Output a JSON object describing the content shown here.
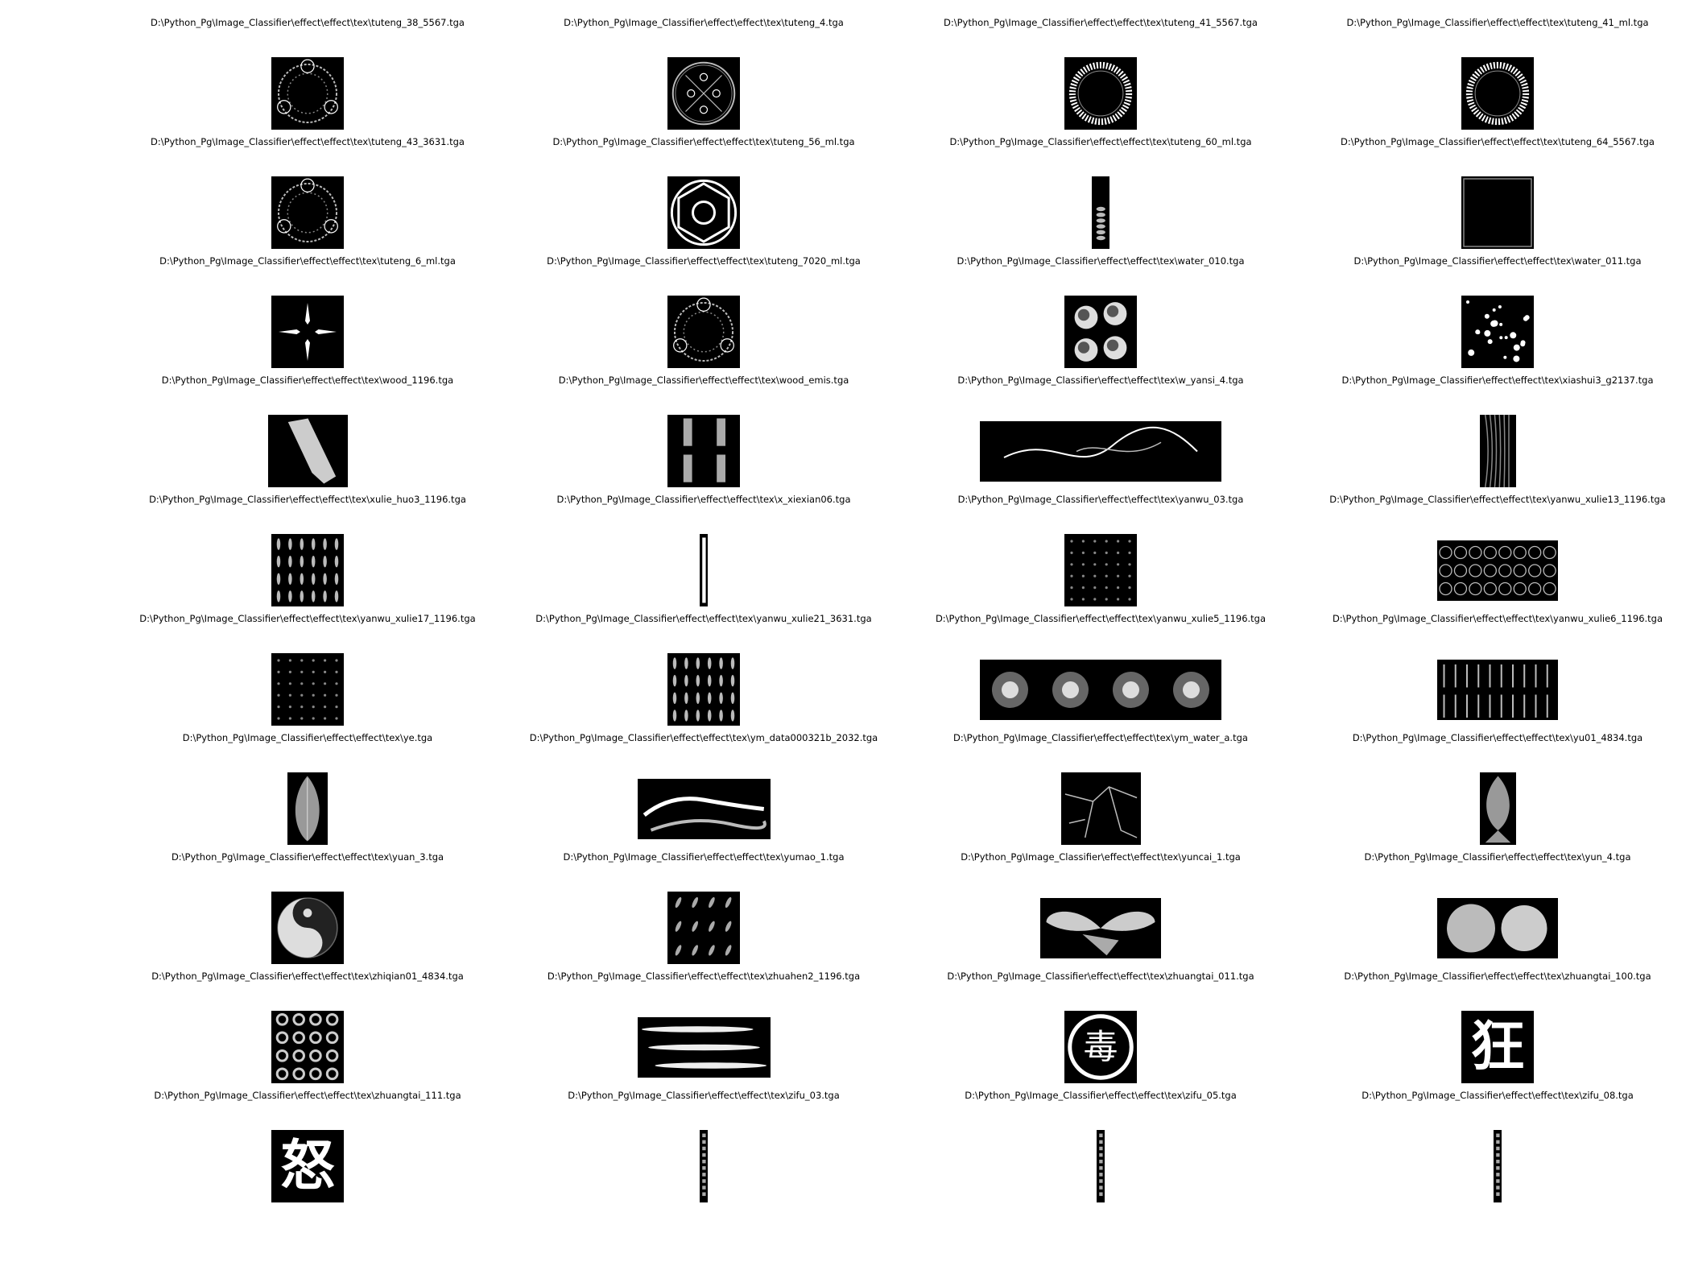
{
  "figure": {
    "images": [
      {
        "title": "D:\\Python_Pg\\Image_Classifier\\effect\\effect\\tex\\tuteng_38_5567.tga",
        "pattern": "ring-ornate",
        "aspect": 1
      },
      {
        "title": "D:\\Python_Pg\\Image_Classifier\\effect\\effect\\tex\\tuteng_4.tga",
        "pattern": "circle-symbol",
        "aspect": 1
      },
      {
        "title": "D:\\Python_Pg\\Image_Classifier\\effect\\effect\\tex\\tuteng_41_5567.tga",
        "pattern": "ring-runes",
        "aspect": 1
      },
      {
        "title": "D:\\Python_Pg\\Image_Classifier\\effect\\effect\\tex\\tuteng_41_ml.tga",
        "pattern": "ring-runes",
        "aspect": 1
      },
      {
        "title": "D:\\Python_Pg\\Image_Classifier\\effect\\effect\\tex\\tuteng_43_3631.tga",
        "pattern": "ring-ornate",
        "aspect": 1
      },
      {
        "title": "D:\\Python_Pg\\Image_Classifier\\effect\\effect\\tex\\tuteng_56_ml.tga",
        "pattern": "star-circle",
        "aspect": 1
      },
      {
        "title": "D:\\Python_Pg\\Image_Classifier\\effect\\effect\\tex\\tuteng_60_ml.tga",
        "pattern": "vertical-strip",
        "aspect": 0.25
      },
      {
        "title": "D:\\Python_Pg\\Image_Classifier\\effect\\effect\\tex\\tuteng_64_5567.tga",
        "pattern": "frame",
        "aspect": 1
      },
      {
        "title": "D:\\Python_Pg\\Image_Classifier\\effect\\effect\\tex\\tuteng_6_ml.tga",
        "pattern": "four-points",
        "aspect": 1
      },
      {
        "title": "D:\\Python_Pg\\Image_Classifier\\effect\\effect\\tex\\tuteng_7020_ml.tga",
        "pattern": "ring-ornate",
        "aspect": 1
      },
      {
        "title": "D:\\Python_Pg\\Image_Classifier\\effect\\effect\\tex\\water_010.tga",
        "pattern": "four-orbs",
        "aspect": 1
      },
      {
        "title": "D:\\Python_Pg\\Image_Classifier\\effect\\effect\\tex\\water_011.tga",
        "pattern": "scatter",
        "aspect": 1
      },
      {
        "title": "D:\\Python_Pg\\Image_Classifier\\effect\\effect\\tex\\wood_1196.tga",
        "pattern": "wood",
        "aspect": 1.1
      },
      {
        "title": "D:\\Python_Pg\\Image_Classifier\\effect\\effect\\tex\\wood_emis.tga",
        "pattern": "two-bars",
        "aspect": 1
      },
      {
        "title": "D:\\Python_Pg\\Image_Classifier\\effect\\effect\\tex\\w_yansi_4.tga",
        "pattern": "smoke",
        "aspect": 4
      },
      {
        "title": "D:\\Python_Pg\\Image_Classifier\\effect\\effect\\tex\\xiashui3_g2137.tga",
        "pattern": "streaks",
        "aspect": 0.5
      },
      {
        "title": "D:\\Python_Pg\\Image_Classifier\\effect\\effect\\tex\\xulie_huo3_1196.tga",
        "pattern": "flame-grid",
        "aspect": 1
      },
      {
        "title": "D:\\Python_Pg\\Image_Classifier\\effect\\effect\\tex\\x_xiexian06.tga",
        "pattern": "thin-strip",
        "aspect": 0.12
      },
      {
        "title": "D:\\Python_Pg\\Image_Classifier\\effect\\effect\\tex\\yanwu_03.tga",
        "pattern": "dot-grid",
        "aspect": 1
      },
      {
        "title": "D:\\Python_Pg\\Image_Classifier\\effect\\effect\\tex\\yanwu_xulie13_1196.tga",
        "pattern": "crescent-grid",
        "aspect": 2
      },
      {
        "title": "D:\\Python_Pg\\Image_Classifier\\effect\\effect\\tex\\yanwu_xulie17_1196.tga",
        "pattern": "dot-grid",
        "aspect": 1
      },
      {
        "title": "D:\\Python_Pg\\Image_Classifier\\effect\\effect\\tex\\yanwu_xulie21_3631.tga",
        "pattern": "flame-grid",
        "aspect": 1
      },
      {
        "title": "D:\\Python_Pg\\Image_Classifier\\effect\\effect\\tex\\yanwu_xulie5_1196.tga",
        "pattern": "four-bursts",
        "aspect": 4
      },
      {
        "title": "D:\\Python_Pg\\Image_Classifier\\effect\\effect\\tex\\yanwu_xulie6_1196.tga",
        "pattern": "vertical-wisps",
        "aspect": 2
      },
      {
        "title": "D:\\Python_Pg\\Image_Classifier\\effect\\effect\\tex\\ye.tga",
        "pattern": "leaf",
        "aspect": 0.55
      },
      {
        "title": "D:\\Python_Pg\\Image_Classifier\\effect\\effect\\tex\\ym_data000321b_2032.tga",
        "pattern": "clouds",
        "aspect": 2.2
      },
      {
        "title": "D:\\Python_Pg\\Image_Classifier\\effect\\effect\\tex\\ym_water_a.tga",
        "pattern": "cracks",
        "aspect": 1.1
      },
      {
        "title": "D:\\Python_Pg\\Image_Classifier\\effect\\effect\\tex\\yu01_4834.tga",
        "pattern": "fish",
        "aspect": 0.5
      },
      {
        "title": "D:\\Python_Pg\\Image_Classifier\\effect\\effect\\tex\\yuan_3.tga",
        "pattern": "yinyang",
        "aspect": 1
      },
      {
        "title": "D:\\Python_Pg\\Image_Classifier\\effect\\effect\\tex\\yumao_1.tga",
        "pattern": "feathers",
        "aspect": 1
      },
      {
        "title": "D:\\Python_Pg\\Image_Classifier\\effect\\effect\\tex\\yuncai_1.tga",
        "pattern": "wings",
        "aspect": 2
      },
      {
        "title": "D:\\Python_Pg\\Image_Classifier\\effect\\effect\\tex\\yun_4.tga",
        "pattern": "two-clouds",
        "aspect": 2
      },
      {
        "title": "D:\\Python_Pg\\Image_Classifier\\effect\\effect\\tex\\zhiqian01_4834.tga",
        "pattern": "coin-grid",
        "aspect": 1
      },
      {
        "title": "D:\\Python_Pg\\Image_Classifier\\effect\\effect\\tex\\zhuahen2_1196.tga",
        "pattern": "three-streaks",
        "aspect": 2.2
      },
      {
        "title": "D:\\Python_Pg\\Image_Classifier\\effect\\effect\\tex\\zhuangtai_011.tga",
        "pattern": "seal-glyph",
        "aspect": 1,
        "glyph": "毒"
      },
      {
        "title": "D:\\Python_Pg\\Image_Classifier\\effect\\effect\\tex\\zhuangtai_100.tga",
        "pattern": "big-glyph",
        "aspect": 1,
        "glyph": "狂"
      },
      {
        "title": "D:\\Python_Pg\\Image_Classifier\\effect\\effect\\tex\\zhuangtai_111.tga",
        "pattern": "big-glyph",
        "aspect": 1,
        "glyph": "怒"
      },
      {
        "title": "D:\\Python_Pg\\Image_Classifier\\effect\\effect\\tex\\zifu_03.tga",
        "pattern": "text-strip",
        "aspect": 0.12
      },
      {
        "title": "D:\\Python_Pg\\Image_Classifier\\effect\\effect\\tex\\zifu_05.tga",
        "pattern": "text-strip",
        "aspect": 0.12
      },
      {
        "title": "D:\\Python_Pg\\Image_Classifier\\effect\\effect\\tex\\zifu_08.tga",
        "pattern": "text-strip",
        "aspect": 0.12
      }
    ]
  }
}
